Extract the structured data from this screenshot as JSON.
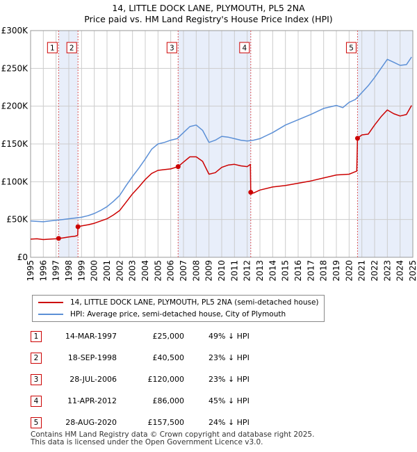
{
  "title_line1": "14, LITTLE DOCK LANE, PLYMOUTH, PL5 2NA",
  "title_line2": "Price paid vs. HM Land Registry's House Price Index (HPI)",
  "colors": {
    "property": "#cc0000",
    "hpi": "#5b8fd6",
    "shade": "#e8eefa",
    "grid": "#cccccc"
  },
  "chart_data": {
    "type": "line",
    "ylim": [
      0,
      300000
    ],
    "xlim": [
      1995,
      2025
    ],
    "y_ticks": [
      0,
      50000,
      100000,
      150000,
      200000,
      250000,
      300000
    ],
    "y_tick_labels": [
      "£0",
      "£50K",
      "£100K",
      "£150K",
      "£200K",
      "£250K",
      "£300K"
    ],
    "x_tick_labels": [
      "1995",
      "1996",
      "1997",
      "1998",
      "1999",
      "2000",
      "2001",
      "2002",
      "2003",
      "2004",
      "2005",
      "2006",
      "2007",
      "2008",
      "2009",
      "2010",
      "2011",
      "2012",
      "2013",
      "2014",
      "2015",
      "2016",
      "2017",
      "2018",
      "2019",
      "2020",
      "2021",
      "2022",
      "2023",
      "2024",
      "2025"
    ],
    "series": [
      {
        "name": "14, LITTLE DOCK LANE, PLYMOUTH, PL5 2NA (semi-detached house)",
        "color": "#cc0000",
        "x": [
          1995.0,
          1995.5,
          1996.0,
          1996.5,
          1997.0,
          1997.2,
          1997.5,
          1998.0,
          1998.5,
          1998.7,
          1998.72,
          1999.0,
          1999.5,
          2000.0,
          2000.5,
          2001.0,
          2001.5,
          2002.0,
          2002.5,
          2003.0,
          2003.5,
          2004.0,
          2004.5,
          2005.0,
          2005.5,
          2006.0,
          2006.58,
          2007.0,
          2007.5,
          2008.0,
          2008.5,
          2009.0,
          2009.5,
          2010.0,
          2010.5,
          2011.0,
          2011.5,
          2012.0,
          2012.25,
          2012.28,
          2012.5,
          2013.0,
          2014.0,
          2015.0,
          2016.0,
          2017.0,
          2018.0,
          2019.0,
          2020.0,
          2020.6,
          2020.66,
          2021.0,
          2021.5,
          2022.0,
          2022.5,
          2023.0,
          2023.5,
          2024.0,
          2024.5,
          2024.9
        ],
        "values": [
          24000,
          24500,
          23500,
          24000,
          24500,
          25000,
          25500,
          27000,
          28000,
          29000,
          40500,
          41500,
          43000,
          45000,
          48000,
          51000,
          56000,
          62000,
          73000,
          84000,
          93000,
          103000,
          111000,
          115000,
          116000,
          117000,
          120000,
          126000,
          133000,
          133000,
          127000,
          110000,
          112000,
          119000,
          122000,
          123000,
          121000,
          120000,
          123000,
          86000,
          85000,
          89000,
          93000,
          95000,
          98000,
          101000,
          105000,
          109000,
          110000,
          114000,
          157500,
          162000,
          163000,
          175000,
          186000,
          195000,
          190000,
          187000,
          189000,
          201000
        ]
      },
      {
        "name": "HPI: Average price, semi-detached house, City of Plymouth",
        "color": "#5b8fd6",
        "x": [
          1995.0,
          1995.5,
          1996.0,
          1996.5,
          1997.0,
          1997.5,
          1998.0,
          1998.5,
          1999.0,
          1999.5,
          2000.0,
          2000.5,
          2001.0,
          2001.5,
          2002.0,
          2002.5,
          2003.0,
          2003.5,
          2004.0,
          2004.5,
          2005.0,
          2005.5,
          2006.0,
          2006.5,
          2007.0,
          2007.5,
          2008.0,
          2008.5,
          2009.0,
          2009.5,
          2010.0,
          2010.5,
          2011.0,
          2011.5,
          2012.0,
          2012.5,
          2013.0,
          2013.5,
          2014.0,
          2015.0,
          2016.0,
          2017.0,
          2018.0,
          2019.0,
          2019.5,
          2020.0,
          2020.5,
          2021.0,
          2021.5,
          2022.0,
          2022.5,
          2023.0,
          2023.5,
          2024.0,
          2024.5,
          2024.9
        ],
        "values": [
          48000,
          47500,
          47000,
          48000,
          49000,
          50000,
          51000,
          52000,
          53000,
          55000,
          58000,
          62000,
          67000,
          74000,
          82000,
          95000,
          107000,
          118000,
          130000,
          143000,
          150000,
          152000,
          155000,
          157000,
          165000,
          173000,
          175000,
          168000,
          152000,
          155000,
          160000,
          159000,
          157000,
          155000,
          154000,
          155000,
          157000,
          161000,
          165000,
          175000,
          182000,
          189000,
          197000,
          201000,
          198000,
          205000,
          209000,
          218000,
          227000,
          238000,
          250000,
          262000,
          258000,
          254000,
          255000,
          265000
        ]
      }
    ],
    "sales": [
      {
        "label": "1",
        "x": 1997.2,
        "price": 25000,
        "date": "14-MAR-1997",
        "price_label": "£25,000",
        "hpi_label": "49% ↓ HPI"
      },
      {
        "label": "2",
        "x": 1998.72,
        "price": 40500,
        "date": "18-SEP-1998",
        "price_label": "£40,500",
        "hpi_label": "23% ↓ HPI"
      },
      {
        "label": "3",
        "x": 2006.58,
        "price": 120000,
        "date": "28-JUL-2006",
        "price_label": "£120,000",
        "hpi_label": "23% ↓ HPI"
      },
      {
        "label": "4",
        "x": 2012.28,
        "price": 86000,
        "date": "11-APR-2012",
        "price_label": "£86,000",
        "hpi_label": "45% ↓ HPI"
      },
      {
        "label": "5",
        "x": 2020.66,
        "price": 157500,
        "date": "28-AUG-2020",
        "price_label": "£157,500",
        "hpi_label": "24% ↓ HPI"
      }
    ]
  },
  "legend": {
    "property_label": "14, LITTLE DOCK LANE, PLYMOUTH, PL5 2NA (semi-detached house)",
    "hpi_label": "HPI: Average price, semi-detached house, City of Plymouth"
  },
  "footer": {
    "line1": "Contains HM Land Registry data © Crown copyright and database right 2025.",
    "line2": "This data is licensed under the Open Government Licence v3.0."
  }
}
